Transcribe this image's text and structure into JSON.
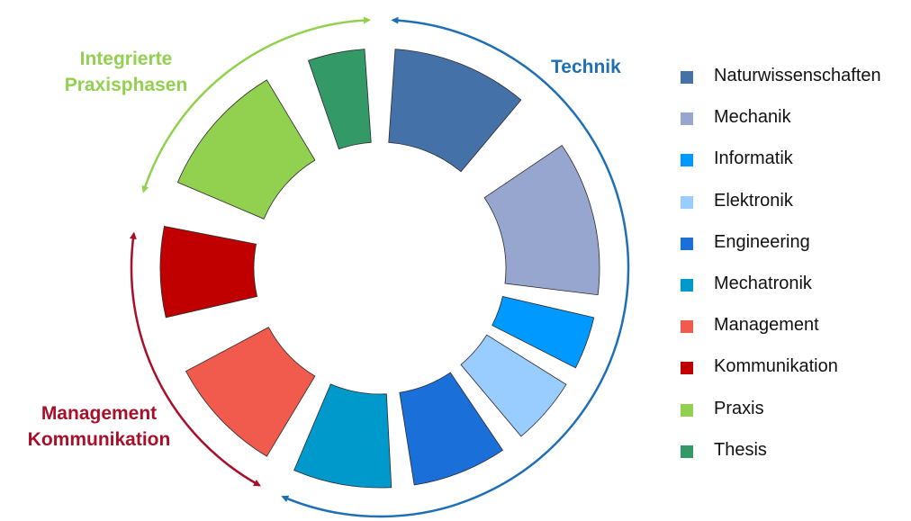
{
  "chart_data": {
    "type": "donut",
    "segments": [
      {
        "name": "Naturwissenschaften",
        "color": "#4472a8",
        "start_deg": 4,
        "end_deg": 40
      },
      {
        "name": "Mechanik",
        "color": "#97a6cf",
        "start_deg": 56,
        "end_deg": 97
      },
      {
        "name": "Informatik",
        "color": "#0099ff",
        "start_deg": 103,
        "end_deg": 117
      },
      {
        "name": "Elektronik",
        "color": "#99ccff",
        "start_deg": 122,
        "end_deg": 140
      },
      {
        "name": "Engineering",
        "color": "#1a6fd8",
        "start_deg": 146,
        "end_deg": 171
      },
      {
        "name": "Mechatronik",
        "color": "#0099cc",
        "start_deg": 177,
        "end_deg": 203
      },
      {
        "name": "Management",
        "color": "#f15b4e",
        "start_deg": 211,
        "end_deg": 242
      },
      {
        "name": "Kommunikation",
        "color": "#c00000",
        "start_deg": 257,
        "end_deg": 281
      },
      {
        "name": "Praxis",
        "color": "#92d050",
        "start_deg": 293,
        "end_deg": 329
      },
      {
        "name": "Thesis",
        "color": "#339966",
        "start_deg": 341,
        "end_deg": 356
      }
    ],
    "groups": [
      {
        "label_line1": "Technik",
        "label_line2": "",
        "color": "#1f6fb5",
        "from_deg": 3,
        "to_deg": 203
      },
      {
        "label_line1": "Integrierte",
        "label_line2": "Praxisphasen",
        "color": "#92d050",
        "from_deg": 288,
        "to_deg": 357.5
      },
      {
        "label_line1": "Management",
        "label_line2": "Kommunikation",
        "color": "#a8102a",
        "from_deg": 209,
        "to_deg": 278
      }
    ],
    "legend_placement": "right"
  }
}
